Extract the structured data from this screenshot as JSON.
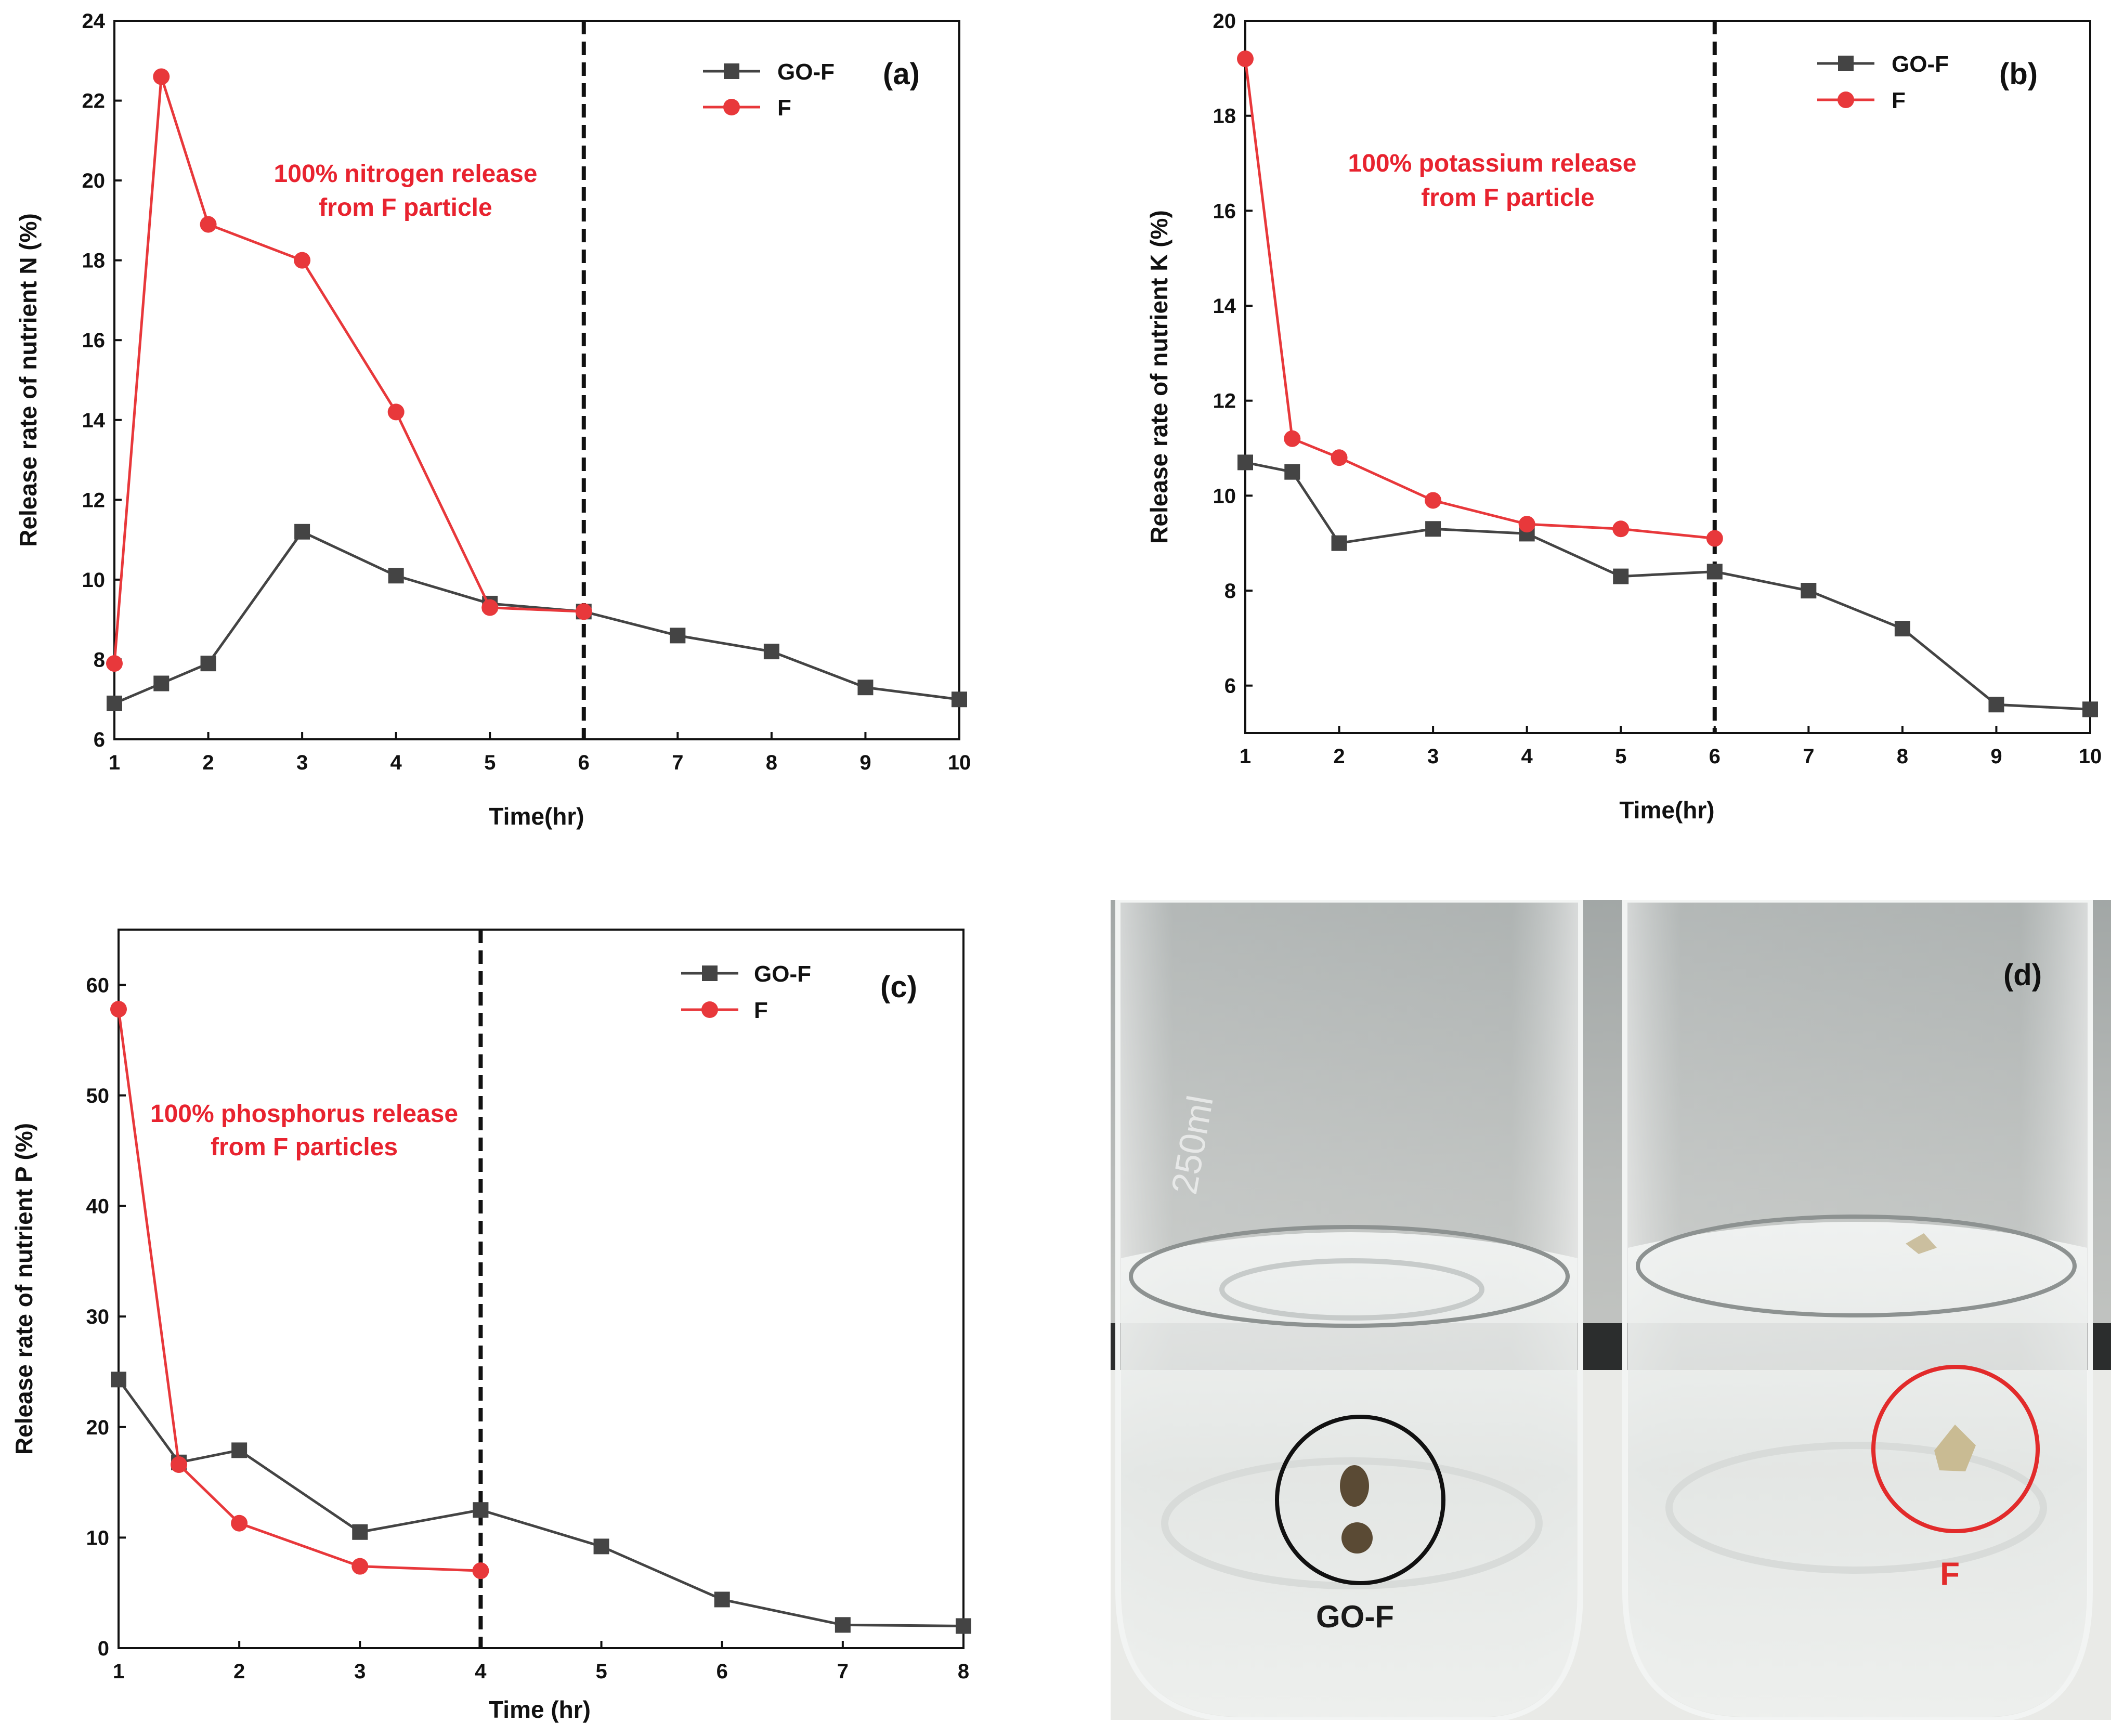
{
  "colors": {
    "go_f": "#444444",
    "f": "#e8383b",
    "axis": "#111111",
    "annotation": "#e8232f"
  },
  "chart_data": [
    {
      "type": "line",
      "panel": "(a)",
      "xlabel": "Time(hr)",
      "ylabel": "Release rate of nutrient N (%)",
      "xlim": [
        1,
        10
      ],
      "ylim": [
        6,
        24
      ],
      "xticks": [
        1,
        2,
        3,
        4,
        5,
        6,
        7,
        8,
        9,
        10
      ],
      "yticks": [
        6,
        8,
        10,
        12,
        14,
        16,
        18,
        20,
        22,
        24
      ],
      "vline_x": 6,
      "annotation": [
        "100% nitrogen release",
        "from F particle"
      ],
      "legend_position": "top-right",
      "series": [
        {
          "name": "GO-F",
          "marker": "square",
          "x": [
            1,
            1.5,
            2,
            3,
            4,
            5,
            6,
            7,
            8,
            9,
            10
          ],
          "y": [
            6.9,
            7.4,
            7.9,
            11.2,
            10.1,
            9.4,
            9.2,
            8.6,
            8.2,
            7.3,
            7.0
          ]
        },
        {
          "name": "F",
          "marker": "circle",
          "x": [
            1,
            1.5,
            2,
            3,
            4,
            5,
            6
          ],
          "y": [
            7.9,
            22.6,
            18.9,
            18.0,
            14.2,
            9.3,
            9.2
          ]
        }
      ]
    },
    {
      "type": "line",
      "panel": "(b)",
      "xlabel": "Time(hr)",
      "ylabel": "Release rate of nutrient K (%)",
      "xlim": [
        1,
        10
      ],
      "ylim": [
        5,
        20
      ],
      "xticks": [
        1,
        2,
        3,
        4,
        5,
        6,
        7,
        8,
        9,
        10
      ],
      "yticks": [
        6,
        8,
        10,
        12,
        14,
        16,
        18,
        20
      ],
      "vline_x": 6,
      "annotation": [
        "100% potassium release",
        "from F particle"
      ],
      "legend_position": "top-right",
      "series": [
        {
          "name": "GO-F",
          "marker": "square",
          "x": [
            1,
            1.5,
            2,
            3,
            4,
            5,
            6,
            7,
            8,
            9,
            10
          ],
          "y": [
            10.7,
            10.5,
            9.0,
            9.3,
            9.2,
            8.3,
            8.4,
            8.0,
            7.2,
            5.6,
            5.5
          ]
        },
        {
          "name": "F",
          "marker": "circle",
          "x": [
            1,
            1.5,
            2,
            3,
            4,
            5,
            6
          ],
          "y": [
            19.2,
            11.2,
            10.8,
            9.9,
            9.4,
            9.3,
            9.1
          ]
        }
      ]
    },
    {
      "type": "line",
      "panel": "(c)",
      "xlabel": "Time (hr)",
      "ylabel": "Release rate of nutrient P (%)",
      "xlim": [
        1,
        8
      ],
      "ylim": [
        0,
        65
      ],
      "xticks": [
        1,
        2,
        3,
        4,
        5,
        6,
        7,
        8
      ],
      "yticks": [
        0,
        10,
        20,
        30,
        40,
        50,
        60
      ],
      "vline_x": 4,
      "annotation": [
        "100% phosphorus release",
        "from  F particles"
      ],
      "legend_position": "top-right",
      "series": [
        {
          "name": "GO-F",
          "marker": "square",
          "x": [
            1,
            1.5,
            2,
            3,
            4,
            5,
            6,
            7,
            8
          ],
          "y": [
            24.3,
            16.8,
            17.9,
            10.5,
            12.5,
            9.2,
            4.4,
            2.1,
            2.0
          ]
        },
        {
          "name": "F",
          "marker": "circle",
          "x": [
            1,
            1.5,
            2,
            3,
            4
          ],
          "y": [
            57.8,
            16.6,
            11.3,
            7.4,
            7.0
          ]
        }
      ]
    }
  ],
  "photo": {
    "panel": "(d)",
    "label_left": "GO-F",
    "label_right": "F",
    "beaker_marking": "250ml"
  }
}
